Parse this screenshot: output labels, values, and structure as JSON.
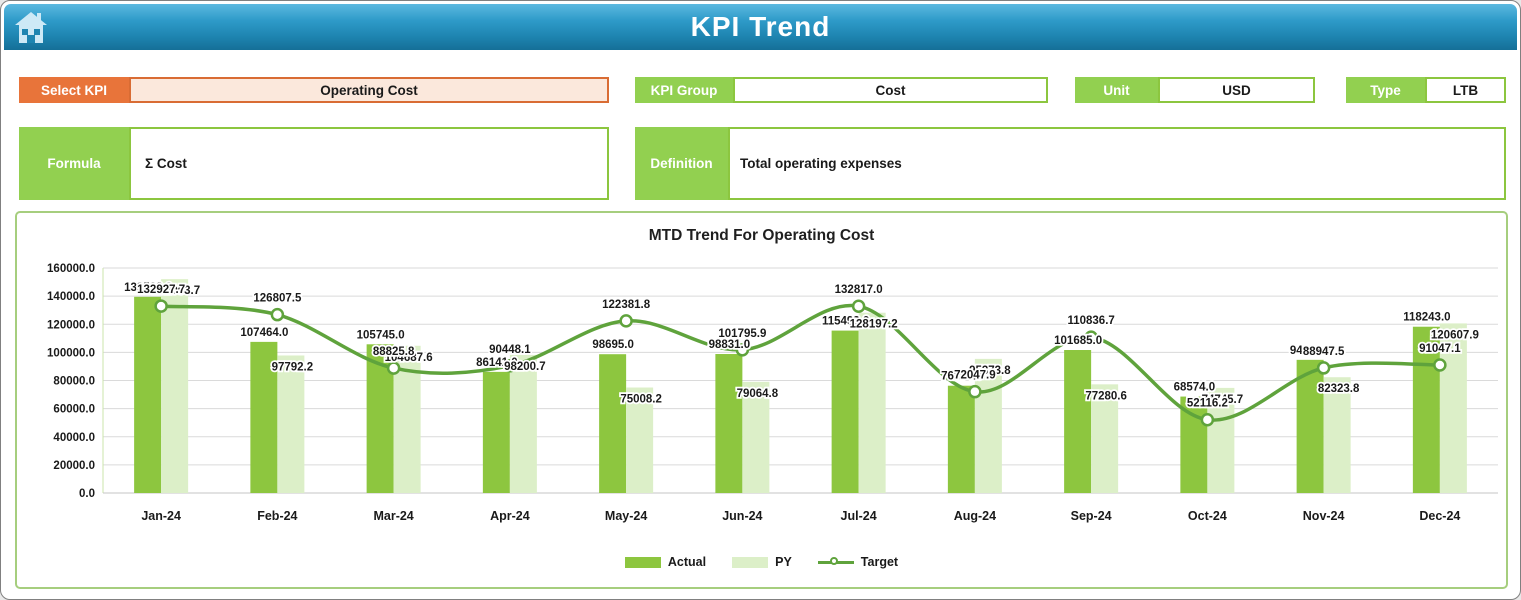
{
  "header": {
    "title": "KPI Trend",
    "home_icon": "home-icon"
  },
  "filters": {
    "select_kpi": {
      "label": "Select KPI",
      "value": "Operating Cost"
    },
    "kpi_group": {
      "label": "KPI Group",
      "value": "Cost"
    },
    "unit": {
      "label": "Unit",
      "value": "USD"
    },
    "type": {
      "label": "Type",
      "value": "LTB"
    },
    "formula": {
      "label": "Formula",
      "value": "Σ Cost"
    },
    "definition": {
      "label": "Definition",
      "value": "Total operating expenses"
    }
  },
  "chart_data": {
    "type": "bar",
    "subtype": "combo-bar-line",
    "title": "MTD Trend For Operating Cost",
    "categories": [
      "Jan-24",
      "Feb-24",
      "Mar-24",
      "Apr-24",
      "May-24",
      "Jun-24",
      "Jul-24",
      "Aug-24",
      "Sep-24",
      "Oct-24",
      "Nov-24",
      "Dec-24"
    ],
    "series": [
      {
        "name": "Actual",
        "render": "bar",
        "color": "#8dc63f",
        "values": [
          139508.0,
          107464.0,
          105745.0,
          86141.0,
          98695.0,
          98831.0,
          115493.0,
          76294.0,
          101685.0,
          68574.0,
          94685.0,
          118243.0
        ]
      },
      {
        "name": "PY",
        "render": "bar",
        "color": "#dcefc8",
        "values": [
          152063.7,
          97792.2,
          104687.6,
          98200.7,
          75008.2,
          79064.8,
          128197.2,
          95373.8,
          77280.6,
          74745.7,
          82323.8,
          120607.9
        ]
      },
      {
        "name": "Target",
        "render": "line",
        "color": "#5fa33c",
        "values": [
          132927.7,
          126807.5,
          88825.8,
          90448.1,
          122381.8,
          101795.9,
          132817.0,
          72047.9,
          110836.7,
          52116.2,
          88947.5,
          91047.1
        ]
      }
    ],
    "ylabel": "",
    "xlabel": "",
    "ylim": [
      0,
      160000
    ],
    "y_step": 20000,
    "y_tick_format": "0.1f",
    "grid": true,
    "legend_position": "bottom",
    "label_decimals": 1
  },
  "colors": {
    "accent_green": "#92d050",
    "accent_orange": "#e8743a",
    "header_blue": "#2f9bc9",
    "gridline": "#dadada",
    "axis_text": "#1a1a1a"
  }
}
